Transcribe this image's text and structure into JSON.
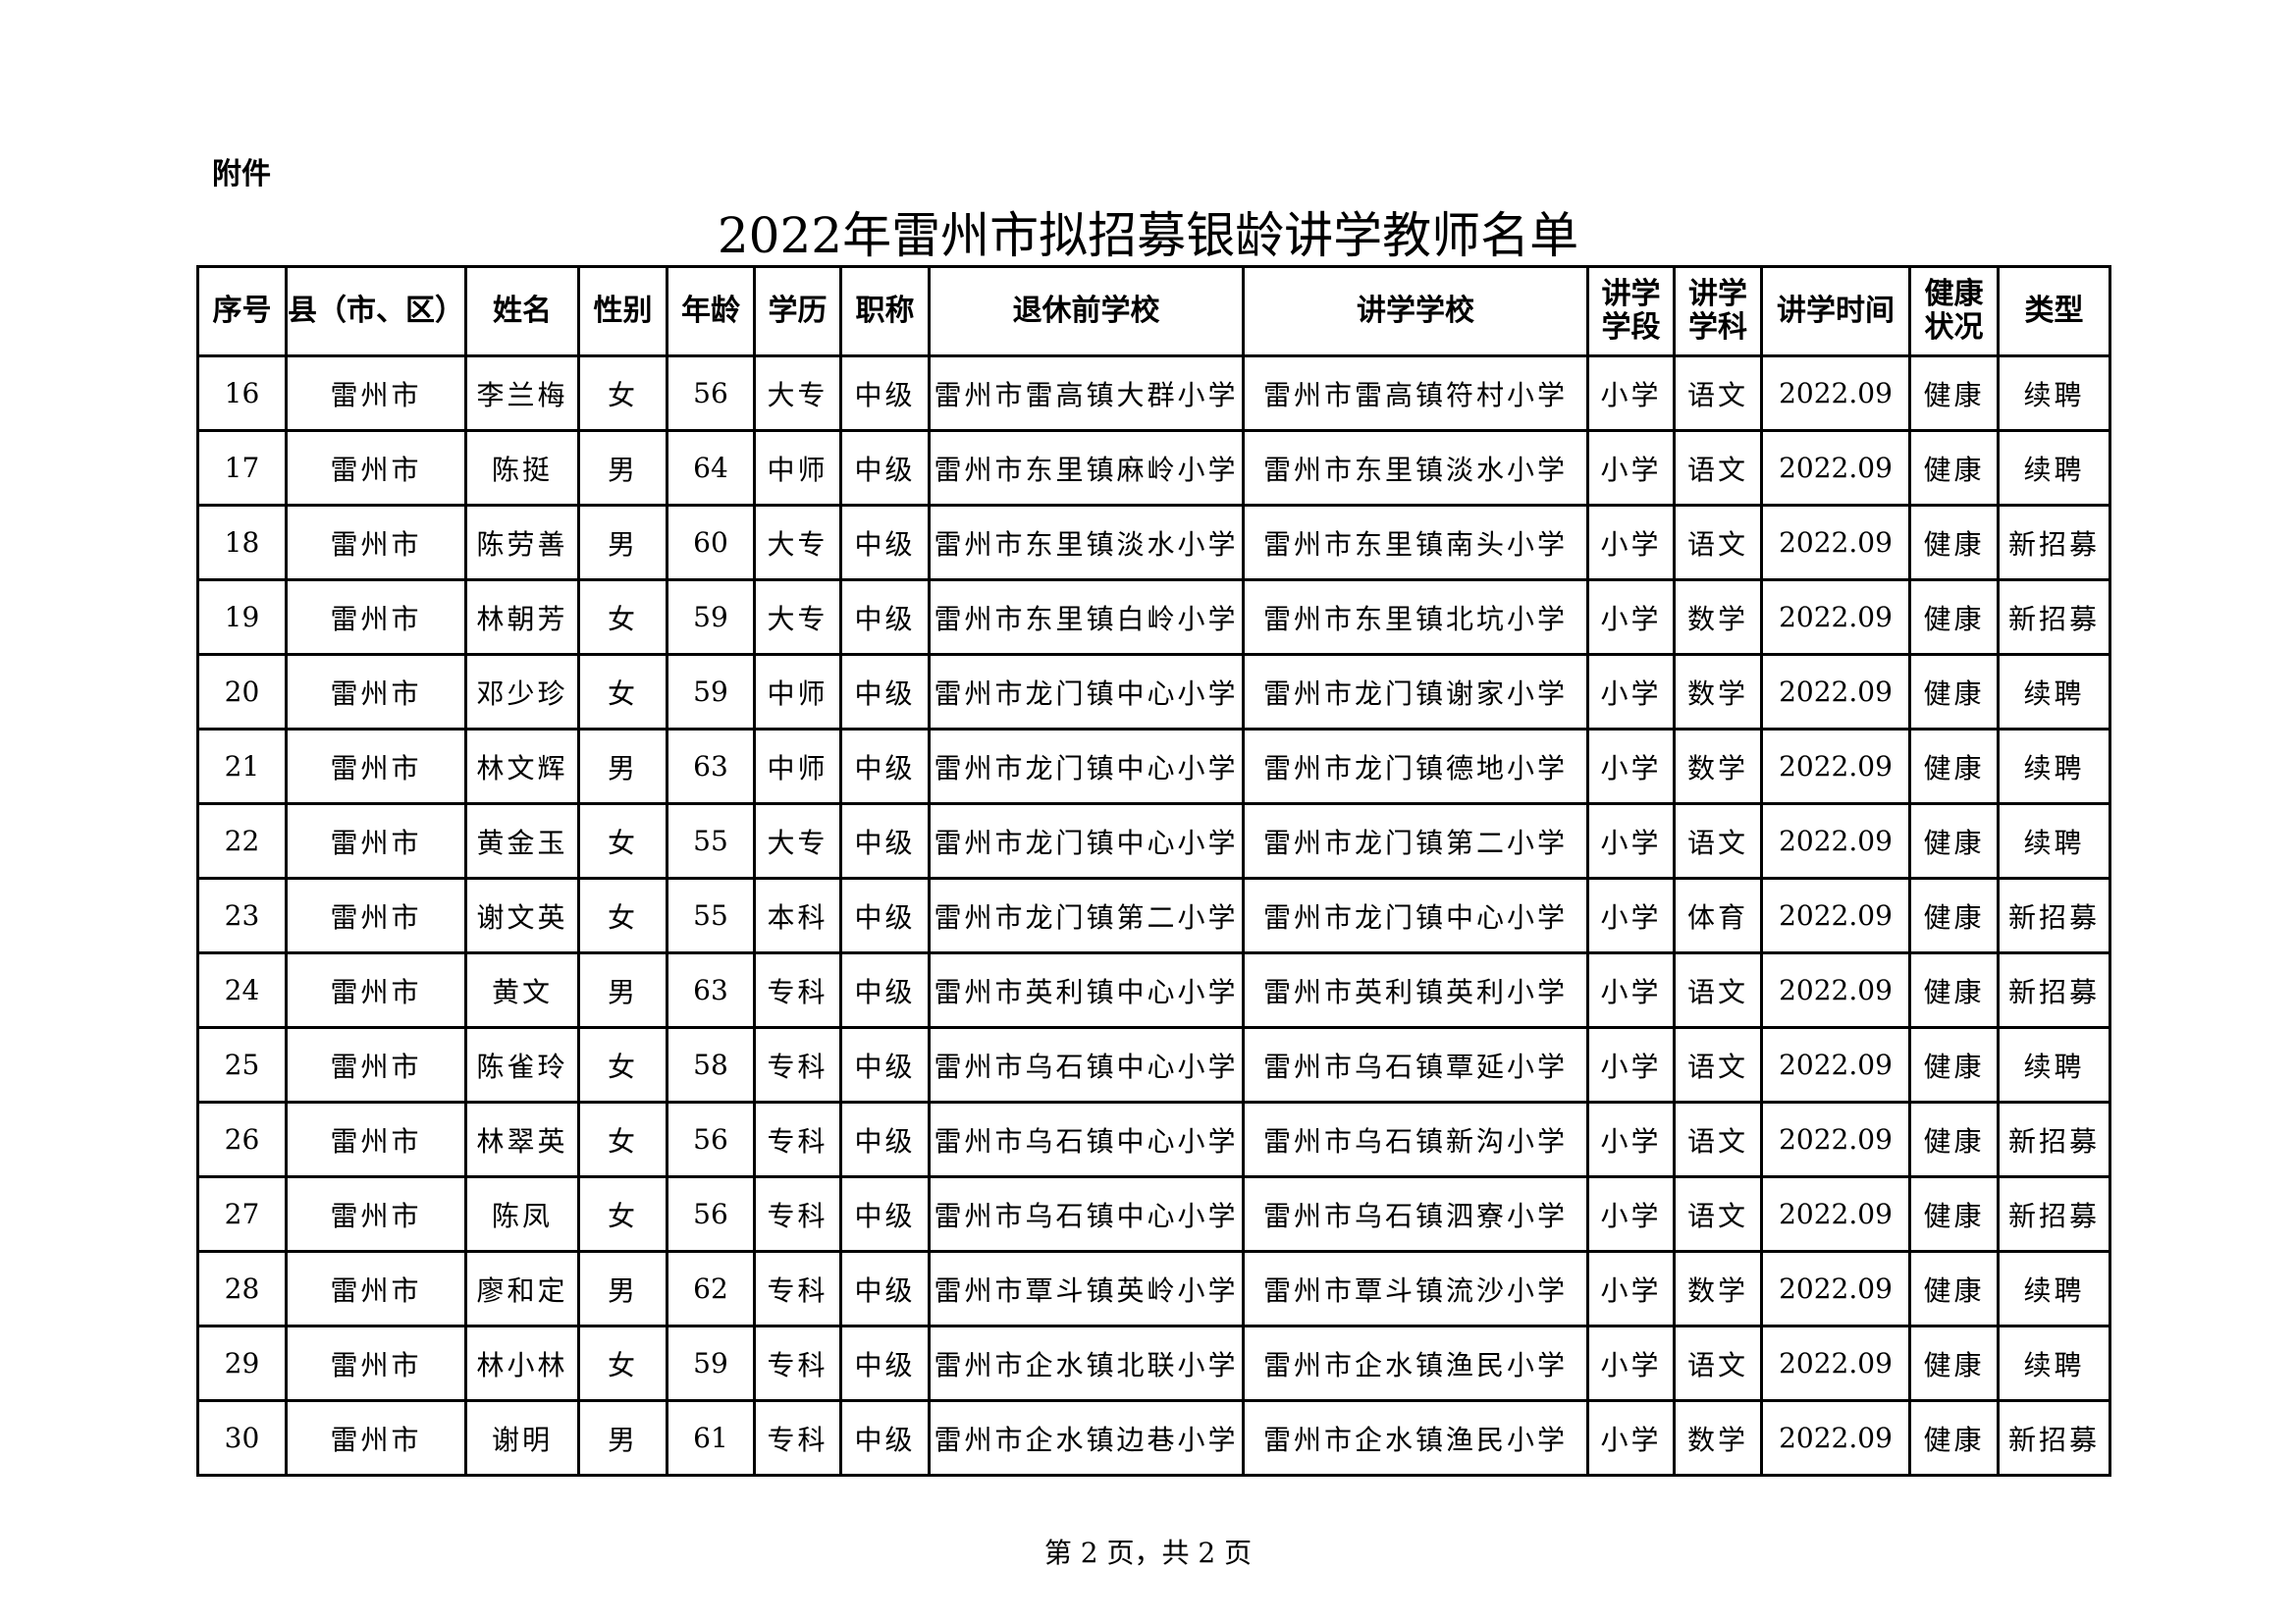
{
  "attachment_label": "附件",
  "title": "2022年雷州市拟招募银龄讲学教师名单",
  "headers": [
    "序号",
    "县（市、区）",
    "姓名",
    "性别",
    "年龄",
    "学历",
    "职称",
    "退休前学校",
    "讲学学校",
    "讲学学段",
    "讲学学科",
    "讲学时间",
    "健康状况",
    "类型"
  ],
  "rows": [
    [
      "16",
      "雷州市",
      "李兰梅",
      "女",
      "56",
      "大专",
      "中级",
      "雷州市雷高镇大群小学",
      "雷州市雷高镇符村小学",
      "小学",
      "语文",
      "2022.09",
      "健康",
      "续聘"
    ],
    [
      "17",
      "雷州市",
      "陈挺",
      "男",
      "64",
      "中师",
      "中级",
      "雷州市东里镇麻岭小学",
      "雷州市东里镇淡水小学",
      "小学",
      "语文",
      "2022.09",
      "健康",
      "续聘"
    ],
    [
      "18",
      "雷州市",
      "陈劳善",
      "男",
      "60",
      "大专",
      "中级",
      "雷州市东里镇淡水小学",
      "雷州市东里镇南头小学",
      "小学",
      "语文",
      "2022.09",
      "健康",
      "新招募"
    ],
    [
      "19",
      "雷州市",
      "林朝芳",
      "女",
      "59",
      "大专",
      "中级",
      "雷州市东里镇白岭小学",
      "雷州市东里镇北坑小学",
      "小学",
      "数学",
      "2022.09",
      "健康",
      "新招募"
    ],
    [
      "20",
      "雷州市",
      "邓少珍",
      "女",
      "59",
      "中师",
      "中级",
      "雷州市龙门镇中心小学",
      "雷州市龙门镇谢家小学",
      "小学",
      "数学",
      "2022.09",
      "健康",
      "续聘"
    ],
    [
      "21",
      "雷州市",
      "林文辉",
      "男",
      "63",
      "中师",
      "中级",
      "雷州市龙门镇中心小学",
      "雷州市龙门镇德地小学",
      "小学",
      "数学",
      "2022.09",
      "健康",
      "续聘"
    ],
    [
      "22",
      "雷州市",
      "黄金玉",
      "女",
      "55",
      "大专",
      "中级",
      "雷州市龙门镇中心小学",
      "雷州市龙门镇第二小学",
      "小学",
      "语文",
      "2022.09",
      "健康",
      "续聘"
    ],
    [
      "23",
      "雷州市",
      "谢文英",
      "女",
      "55",
      "本科",
      "中级",
      "雷州市龙门镇第二小学",
      "雷州市龙门镇中心小学",
      "小学",
      "体育",
      "2022.09",
      "健康",
      "新招募"
    ],
    [
      "24",
      "雷州市",
      "黄文",
      "男",
      "63",
      "专科",
      "中级",
      "雷州市英利镇中心小学",
      "雷州市英利镇英利小学",
      "小学",
      "语文",
      "2022.09",
      "健康",
      "新招募"
    ],
    [
      "25",
      "雷州市",
      "陈雀玲",
      "女",
      "58",
      "专科",
      "中级",
      "雷州市乌石镇中心小学",
      "雷州市乌石镇覃延小学",
      "小学",
      "语文",
      "2022.09",
      "健康",
      "续聘"
    ],
    [
      "26",
      "雷州市",
      "林翠英",
      "女",
      "56",
      "专科",
      "中级",
      "雷州市乌石镇中心小学",
      "雷州市乌石镇新沟小学",
      "小学",
      "语文",
      "2022.09",
      "健康",
      "新招募"
    ],
    [
      "27",
      "雷州市",
      "陈凤",
      "女",
      "56",
      "专科",
      "中级",
      "雷州市乌石镇中心小学",
      "雷州市乌石镇泗寮小学",
      "小学",
      "语文",
      "2022.09",
      "健康",
      "新招募"
    ],
    [
      "28",
      "雷州市",
      "廖和定",
      "男",
      "62",
      "专科",
      "中级",
      "雷州市覃斗镇英岭小学",
      "雷州市覃斗镇流沙小学",
      "小学",
      "数学",
      "2022.09",
      "健康",
      "续聘"
    ],
    [
      "29",
      "雷州市",
      "林小林",
      "女",
      "59",
      "专科",
      "中级",
      "雷州市企水镇北联小学",
      "雷州市企水镇渔民小学",
      "小学",
      "语文",
      "2022.09",
      "健康",
      "续聘"
    ],
    [
      "30",
      "雷州市",
      "谢明",
      "男",
      "61",
      "专科",
      "中级",
      "雷州市企水镇边巷小学",
      "雷州市企水镇渔民小学",
      "小学",
      "数学",
      "2022.09",
      "健康",
      "新招募"
    ]
  ],
  "footer": "第 2 页，共 2 页"
}
